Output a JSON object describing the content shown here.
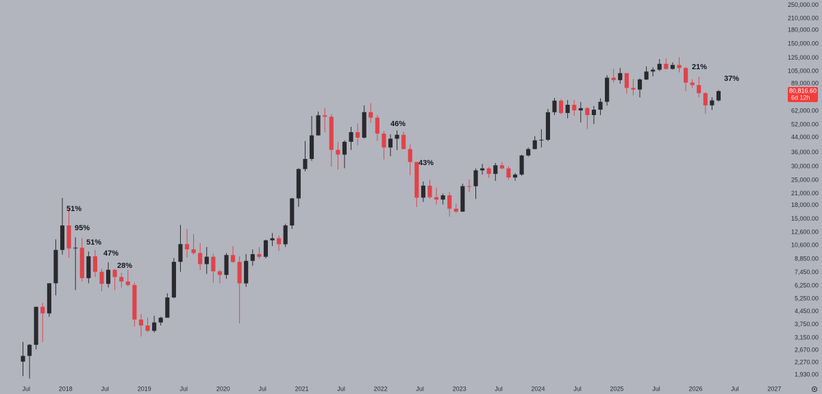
{
  "chart_data": {
    "type": "candlestick",
    "log_scale": true,
    "up_color": "#2a2a2e",
    "down_color": "#e0434a",
    "x": [
      "2017-06",
      "2017-07",
      "2017-08",
      "2017-09",
      "2017-10",
      "2017-11",
      "2017-12",
      "2018-01",
      "2018-02",
      "2018-03",
      "2018-04",
      "2018-05",
      "2018-06",
      "2018-07",
      "2018-08",
      "2018-09",
      "2018-10",
      "2018-11",
      "2018-12",
      "2019-01",
      "2019-02",
      "2019-03",
      "2019-04",
      "2019-05",
      "2019-06",
      "2019-07",
      "2019-08",
      "2019-09",
      "2019-10",
      "2019-11",
      "2019-12",
      "2020-01",
      "2020-02",
      "2020-03",
      "2020-04",
      "2020-05",
      "2020-06",
      "2020-07",
      "2020-08",
      "2020-09",
      "2020-10",
      "2020-11",
      "2020-12",
      "2021-01",
      "2021-02",
      "2021-03",
      "2021-04",
      "2021-05",
      "2021-06",
      "2021-07",
      "2021-08",
      "2021-09",
      "2021-10",
      "2021-11",
      "2021-12",
      "2022-01",
      "2022-02",
      "2022-03",
      "2022-04",
      "2022-05",
      "2022-06",
      "2022-07",
      "2022-08",
      "2022-09",
      "2022-10",
      "2022-11",
      "2022-12",
      "2023-01",
      "2023-02",
      "2023-03",
      "2023-04",
      "2023-05",
      "2023-06",
      "2023-07",
      "2023-08",
      "2023-09",
      "2023-10",
      "2023-11",
      "2023-12",
      "2024-01",
      "2024-02",
      "2024-03",
      "2024-04",
      "2024-05",
      "2024-06",
      "2024-07",
      "2024-08",
      "2024-09",
      "2024-10",
      "2024-11",
      "2024-12",
      "2025-01",
      "2025-02",
      "2025-03",
      "2025-04",
      "2025-05",
      "2025-06",
      "2025-07",
      "2025-08",
      "2025-09",
      "2025-10",
      "2025-11",
      "2025-12",
      "2026-01",
      "2026-02",
      "2026-03",
      "2026-04"
    ],
    "open": [
      2300,
      2480,
      2870,
      4730,
      4340,
      6450,
      10000,
      13800,
      10200,
      10300,
      6900,
      9200,
      7500,
      6400,
      7700,
      7000,
      6600,
      6300,
      4000,
      3700,
      3450,
      3850,
      4100,
      5350,
      8550,
      10800,
      10080,
      9600,
      8300,
      9150,
      7550,
      7200,
      9350,
      8540,
      6440,
      8660,
      9460,
      9140,
      11350,
      11660,
      10780,
      13800,
      19700,
      28990,
      33110,
      45140,
      58800,
      57700,
      37300,
      35050,
      41500,
      47100,
      43800,
      61300,
      57000,
      46200,
      38500,
      43200,
      45500,
      37700,
      31800,
      19900,
      23300,
      20000,
      19400,
      20500,
      17200,
      16550,
      23150,
      23130,
      28500,
      29250,
      27200,
      30450,
      29250,
      25950,
      26950,
      34650,
      37700,
      42300,
      42600,
      61200,
      71300,
      60600,
      67500,
      62700,
      64600,
      58950,
      63300,
      70200,
      96400,
      93400,
      102400,
      84300,
      82500,
      94200,
      104600,
      107100,
      115700,
      108200,
      114000,
      109500,
      90400,
      87500,
      78700,
      67000,
      71500
    ],
    "high": [
      2980,
      2900,
      4750,
      5000,
      6450,
      11500,
      19800,
      17200,
      11800,
      11700,
      9800,
      10000,
      7800,
      8500,
      7770,
      7400,
      7700,
      6500,
      4300,
      4100,
      4200,
      4150,
      5650,
      9000,
      13900,
      13200,
      12300,
      10950,
      10400,
      9500,
      7700,
      9580,
      10500,
      9200,
      9470,
      10070,
      10400,
      11450,
      12480,
      12100,
      14100,
      19850,
      29300,
      41950,
      58350,
      61780,
      64900,
      59500,
      41300,
      42300,
      50500,
      52900,
      67000,
      69000,
      59000,
      47900,
      45800,
      48200,
      47400,
      40000,
      31900,
      24600,
      25200,
      22700,
      21000,
      21400,
      18400,
      23900,
      25250,
      29200,
      31000,
      29800,
      31400,
      31800,
      30000,
      27500,
      35000,
      38450,
      44700,
      48950,
      64000,
      73800,
      72800,
      71900,
      72000,
      70000,
      65600,
      66500,
      73600,
      99600,
      108300,
      109600,
      102500,
      95000,
      95700,
      111900,
      110500,
      123200,
      124500,
      117900,
      126200,
      111200,
      94600,
      97900,
      79500,
      74500,
      82000
    ],
    "low": [
      1900,
      1840,
      2700,
      2970,
      4150,
      5500,
      9400,
      9000,
      5900,
      6600,
      6450,
      7000,
      5800,
      6100,
      5900,
      6100,
      6200,
      3650,
      3200,
      3400,
      3380,
      3700,
      4100,
      5300,
      7500,
      9050,
      9400,
      7700,
      7300,
      6500,
      6430,
      6850,
      8450,
      3800,
      6150,
      8120,
      8900,
      8950,
      10520,
      9880,
      10400,
      13200,
      17600,
      28130,
      32300,
      44950,
      47000,
      30000,
      28800,
      29300,
      37300,
      39600,
      43300,
      53300,
      42000,
      32900,
      34300,
      37200,
      37600,
      26700,
      17600,
      18800,
      19600,
      18200,
      18200,
      15500,
      16300,
      16500,
      21400,
      19550,
      26950,
      25800,
      24800,
      28900,
      25200,
      24900,
      26550,
      34100,
      37600,
      38500,
      41900,
      59000,
      59600,
      56500,
      58400,
      53500,
      49100,
      52500,
      58900,
      66800,
      90500,
      89200,
      78200,
      76600,
      74400,
      93300,
      98200,
      105300,
      107300,
      107300,
      103500,
      80600,
      84400,
      74500,
      60100,
      63000,
      70500
    ],
    "close": [
      2480,
      2870,
      4730,
      4340,
      6450,
      10000,
      13800,
      10200,
      10300,
      6900,
      9200,
      7500,
      6400,
      7700,
      7000,
      6600,
      6300,
      4000,
      3700,
      3450,
      3850,
      4100,
      5350,
      8550,
      10800,
      10080,
      9600,
      8300,
      9150,
      7550,
      7200,
      9350,
      8540,
      6440,
      8660,
      9460,
      9140,
      11350,
      11660,
      10780,
      13800,
      19700,
      28990,
      33110,
      45140,
      58800,
      57700,
      37300,
      35050,
      41500,
      47100,
      43800,
      61300,
      57000,
      46200,
      38500,
      43200,
      45500,
      37700,
      31800,
      19900,
      23300,
      20000,
      19400,
      20500,
      17200,
      16550,
      23150,
      23130,
      28500,
      29250,
      27200,
      30450,
      29250,
      25950,
      26950,
      34650,
      37700,
      42300,
      42600,
      61200,
      71300,
      60600,
      67500,
      62700,
      64600,
      58950,
      63300,
      70200,
      96400,
      93400,
      102400,
      84300,
      82500,
      94200,
      104600,
      107100,
      115700,
      108200,
      114000,
      109500,
      90400,
      87500,
      78700,
      67000,
      71500,
      80816.6
    ],
    "xlim": [
      "2017-03",
      "2027-02"
    ],
    "xticks": [
      {
        "value": "2017-07",
        "label": "Jul"
      },
      {
        "value": "2018-01",
        "label": "2018"
      },
      {
        "value": "2018-07",
        "label": "Jul"
      },
      {
        "value": "2019-01",
        "label": "2019"
      },
      {
        "value": "2019-07",
        "label": "Jul"
      },
      {
        "value": "2020-01",
        "label": "2020"
      },
      {
        "value": "2020-07",
        "label": "Jul"
      },
      {
        "value": "2021-01",
        "label": "2021"
      },
      {
        "value": "2021-07",
        "label": "Jul"
      },
      {
        "value": "2022-01",
        "label": "2022"
      },
      {
        "value": "2022-07",
        "label": "Jul"
      },
      {
        "value": "2023-01",
        "label": "2023"
      },
      {
        "value": "2023-07",
        "label": "Jul"
      },
      {
        "value": "2024-01",
        "label": "2024"
      },
      {
        "value": "2024-07",
        "label": "Jul"
      },
      {
        "value": "2025-01",
        "label": "2025"
      },
      {
        "value": "2025-07",
        "label": "Jul"
      },
      {
        "value": "2026-01",
        "label": "2026"
      },
      {
        "value": "2026-07",
        "label": "Jul"
      },
      {
        "value": "2027-01",
        "label": "2027"
      }
    ],
    "ylim": [
      1720,
      268000
    ],
    "yticks": [
      {
        "value": 1930,
        "label": "1,930.00"
      },
      {
        "value": 2270,
        "label": "2,270.00"
      },
      {
        "value": 2670,
        "label": "2,670.00"
      },
      {
        "value": 3150,
        "label": "3,150.00"
      },
      {
        "value": 3750,
        "label": "3,750.00"
      },
      {
        "value": 4450,
        "label": "4,450.00"
      },
      {
        "value": 5250,
        "label": "5,250.00"
      },
      {
        "value": 6250,
        "label": "6,250.00"
      },
      {
        "value": 7450,
        "label": "7,450.00"
      },
      {
        "value": 8850,
        "label": "8,850.00"
      },
      {
        "value": 10600,
        "label": "10,600.00"
      },
      {
        "value": 12600,
        "label": "12,600.00"
      },
      {
        "value": 15000,
        "label": "15,000.00"
      },
      {
        "value": 18000,
        "label": "18,000.00"
      },
      {
        "value": 21000,
        "label": "21,000.00"
      },
      {
        "value": 25000,
        "label": "25,000.00"
      },
      {
        "value": 30000,
        "label": "30,000.00"
      },
      {
        "value": 36000,
        "label": "36,000.00"
      },
      {
        "value": 44000,
        "label": "44,000.00"
      },
      {
        "value": 52000,
        "label": "52,000.00"
      },
      {
        "value": 62000,
        "label": "62,000.00"
      },
      {
        "value": 89000,
        "label": "89,000.00"
      },
      {
        "value": 105000,
        "label": "105,000.00"
      },
      {
        "value": 125000,
        "label": "125,000.00"
      },
      {
        "value": 150000,
        "label": "150,000.00"
      },
      {
        "value": 180000,
        "label": "180,000.00"
      },
      {
        "value": 210000,
        "label": "210,000.00"
      },
      {
        "value": 250000,
        "label": "250,000.00"
      }
    ],
    "last_price": {
      "value": 80816.6,
      "label": "80,816.60"
    },
    "countdown": "6d 12h",
    "price_box_color": "#f23d3d",
    "annotations": [
      "51%",
      "95%",
      "51%",
      "47%",
      "28%",
      "46%",
      "43%",
      "21%",
      "37%"
    ]
  }
}
